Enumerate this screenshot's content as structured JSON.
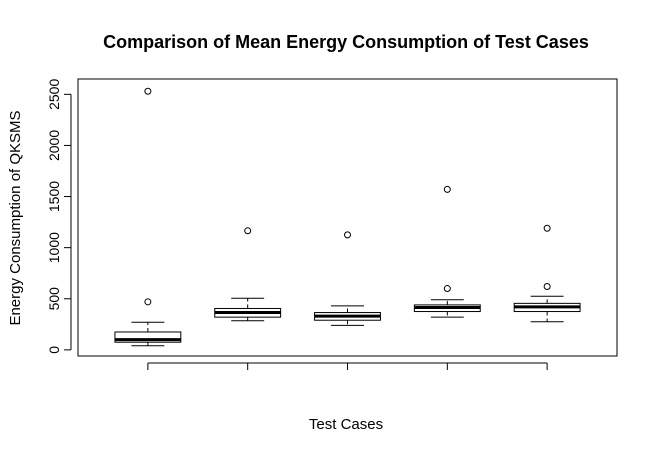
{
  "chart_data": {
    "type": "boxplot",
    "title": "Comparison of Mean Energy Consumption of Test Cases",
    "xlabel": "Test Cases",
    "ylabel": "Energy Consumption of QKSMS",
    "ylim": [
      -60,
      2650
    ],
    "yticks": [
      0,
      500,
      1000,
      1500,
      2000,
      2500
    ],
    "grid": false,
    "boxes": [
      {
        "whisker_low": 40,
        "q1": 75,
        "median": 100,
        "q3": 175,
        "whisker_high": 270,
        "outliers": [
          470,
          2530
        ]
      },
      {
        "whisker_low": 285,
        "q1": 320,
        "median": 365,
        "q3": 405,
        "whisker_high": 505,
        "outliers": [
          1165
        ]
      },
      {
        "whisker_low": 240,
        "q1": 290,
        "median": 330,
        "q3": 365,
        "whisker_high": 430,
        "outliers": [
          1125
        ]
      },
      {
        "whisker_low": 320,
        "q1": 375,
        "median": 415,
        "q3": 440,
        "whisker_high": 490,
        "outliers": [
          600,
          1570
        ]
      },
      {
        "whisker_low": 275,
        "q1": 375,
        "median": 420,
        "q3": 455,
        "whisker_high": 525,
        "outliers": [
          620,
          1190
        ]
      }
    ]
  }
}
